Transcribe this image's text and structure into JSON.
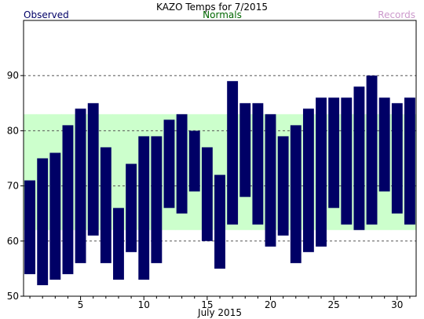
{
  "chart_data": {
    "type": "bar",
    "title": "KAZO Temps for 7/2015",
    "legend": {
      "observed": "Observed",
      "normals": "Normals",
      "records": "Records",
      "observed_color": "#000066",
      "normals_color": "#006600",
      "records_color": "#cc99cc"
    },
    "xlabel": "July 2015",
    "x_ticks": [
      "5",
      "10",
      "15",
      "20",
      "25",
      "30"
    ],
    "y_ticks": [
      "50",
      "60",
      "70",
      "80",
      "90"
    ],
    "xlim": [
      0.5,
      31.5
    ],
    "ylim": [
      50,
      100
    ],
    "grid_values": [
      60,
      70,
      80,
      90
    ],
    "colors": {
      "bar": "#000066",
      "normals_band": "#ccffcc",
      "grid": "#555555"
    },
    "days": [
      1,
      2,
      3,
      4,
      5,
      6,
      7,
      8,
      9,
      10,
      11,
      12,
      13,
      14,
      15,
      16,
      17,
      18,
      19,
      20,
      21,
      22,
      23,
      24,
      25,
      26,
      27,
      28,
      29,
      30,
      31
    ],
    "series": [
      {
        "name": "Observed",
        "high": [
          71,
          75,
          76,
          81,
          84,
          85,
          77,
          66,
          74,
          79,
          79,
          82,
          83,
          80,
          77,
          72,
          89,
          85,
          85,
          83,
          79,
          81,
          84,
          86,
          86,
          86,
          88,
          90,
          86,
          85,
          86
        ],
        "low": [
          54,
          52,
          53,
          54,
          56,
          61,
          56,
          53,
          58,
          53,
          56,
          66,
          65,
          69,
          60,
          55,
          63,
          68,
          63,
          59,
          61,
          56,
          58,
          59,
          66,
          63,
          62,
          63,
          69,
          65,
          63
        ]
      },
      {
        "name": "Normals",
        "high": [
          83,
          83,
          83,
          83,
          83,
          83,
          83,
          83,
          83,
          83,
          83,
          83,
          83,
          83,
          83,
          83,
          83,
          83,
          83,
          83,
          83,
          83,
          83,
          83,
          83,
          83,
          83,
          83,
          83,
          83,
          83
        ],
        "low": [
          62,
          62,
          62,
          62,
          62,
          62,
          62,
          62,
          62,
          62,
          62,
          62,
          62,
          62,
          62,
          62,
          62,
          62,
          62,
          62,
          62,
          62,
          62,
          62,
          62,
          62,
          62,
          62,
          62,
          62,
          62
        ]
      }
    ]
  }
}
